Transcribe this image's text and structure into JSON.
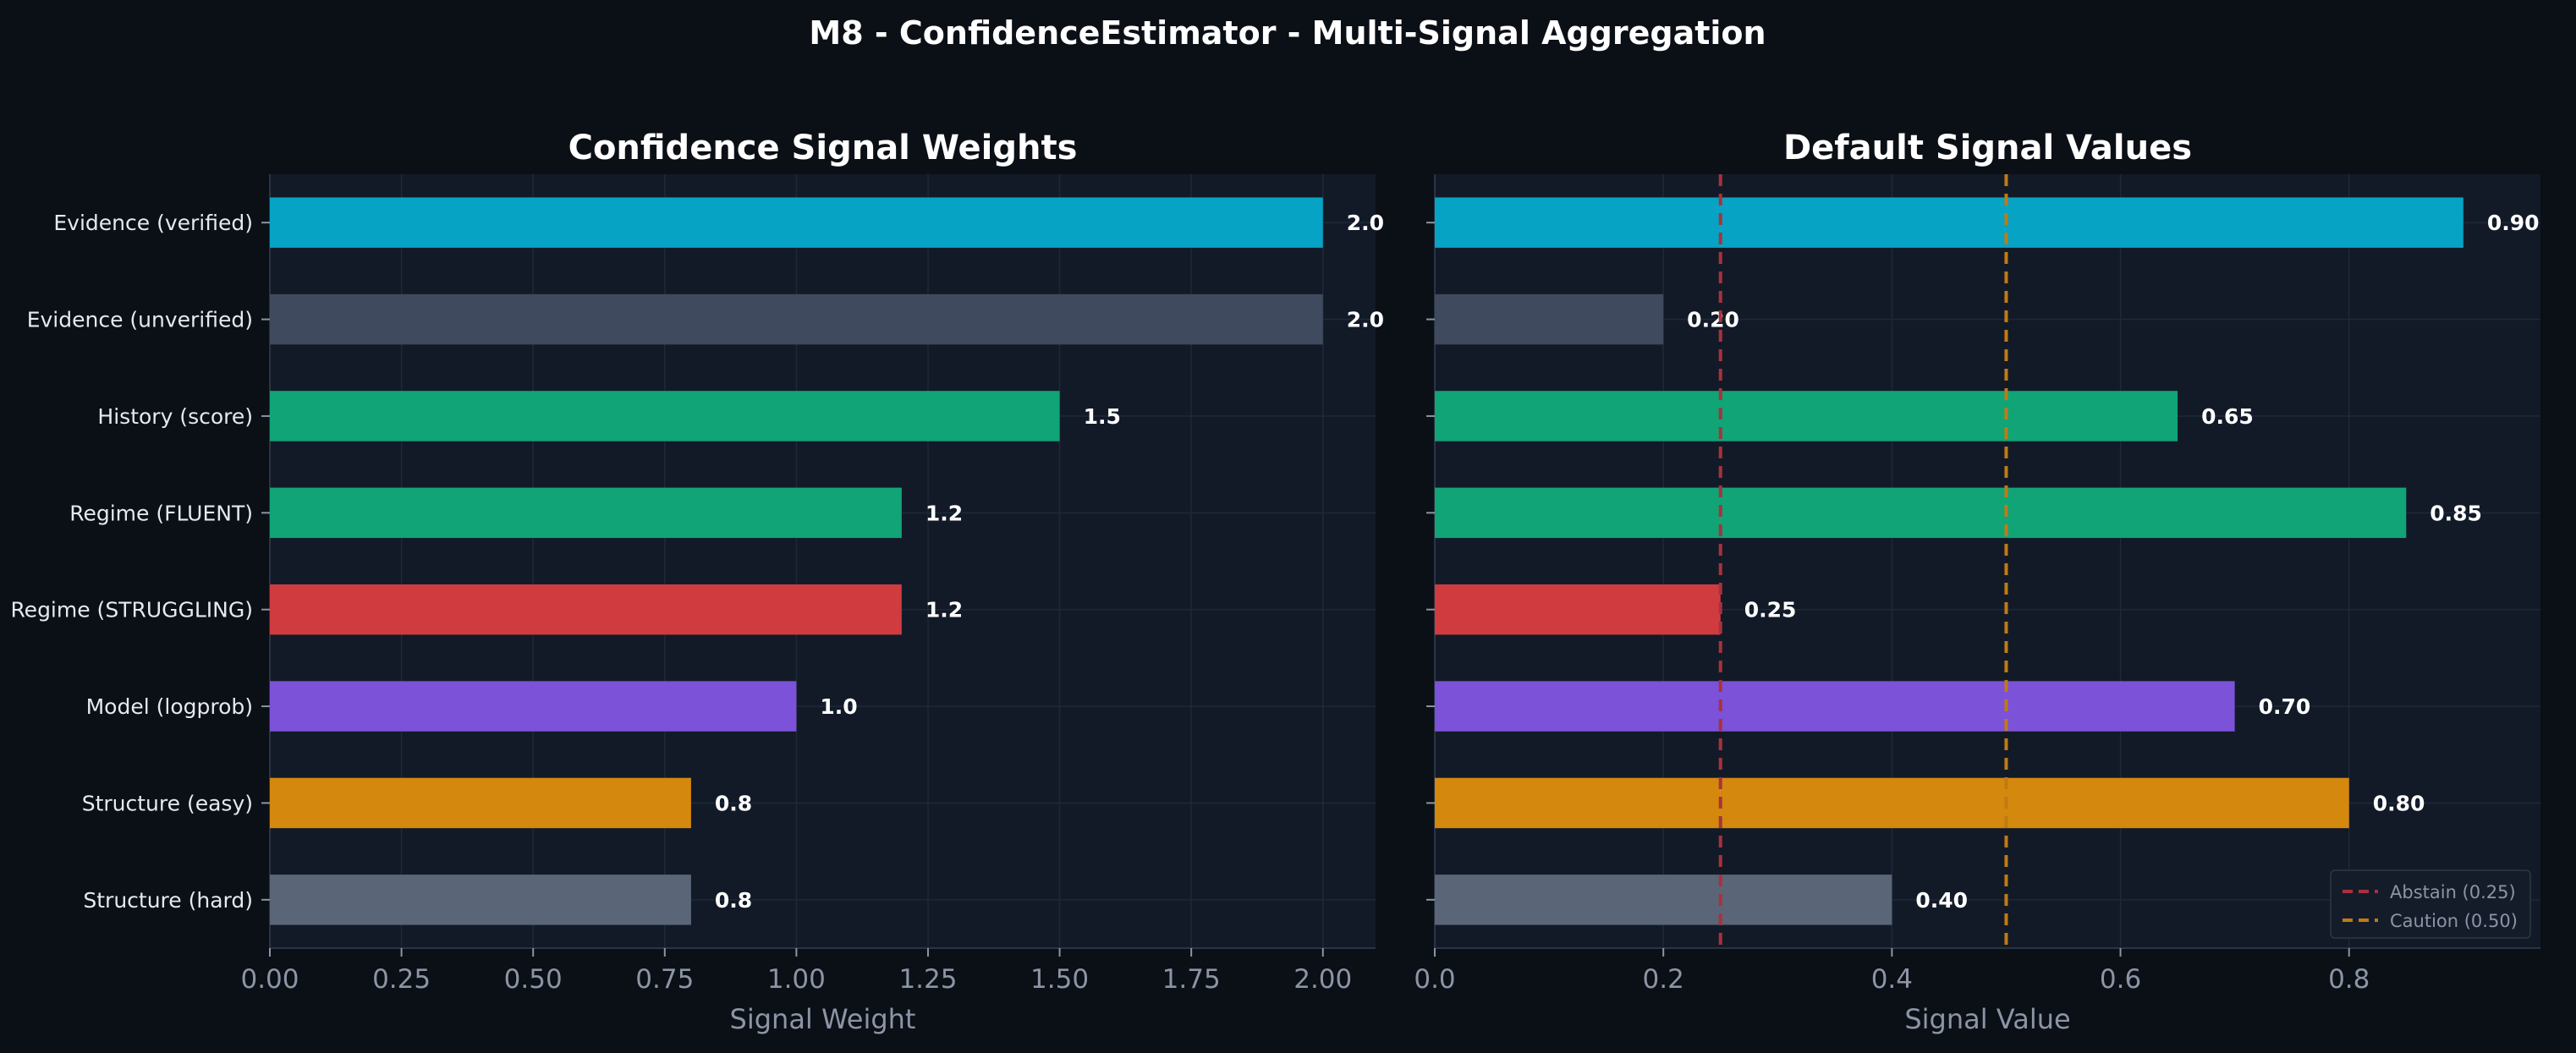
{
  "suptitle": "M8 - ConfidenceEstimator - Multi-Signal Aggregation",
  "colors": {
    "figure_bg": "#0b0f16",
    "axes_bg": "#121a28",
    "grid": "#1e2838",
    "spine": "#2a3445",
    "abstain_line": "#a8323c",
    "caution_line": "#c07a14"
  },
  "chart_data": [
    {
      "type": "bar",
      "orientation": "horizontal",
      "title": "Confidence Signal Weights",
      "xlabel": "Signal Weight",
      "ylabel": "",
      "xlim": [
        0,
        2.1
      ],
      "xticks": [
        0.0,
        0.25,
        0.5,
        0.75,
        1.0,
        1.25,
        1.5,
        1.75,
        2.0
      ],
      "xtick_labels": [
        "0.00",
        "0.25",
        "0.50",
        "0.75",
        "1.00",
        "1.25",
        "1.50",
        "1.75",
        "2.00"
      ],
      "grid": true,
      "categories": [
        "Evidence (verified)",
        "Evidence (unverified)",
        "History (score)",
        "Regime (FLUENT)",
        "Regime (STRUGGLING)",
        "Model (logprob)",
        "Structure (easy)",
        "Structure (hard)"
      ],
      "values": [
        2.0,
        2.0,
        1.5,
        1.2,
        1.2,
        1.0,
        0.8,
        0.8
      ],
      "value_labels": [
        "2.0",
        "2.0",
        "1.5",
        "1.2",
        "1.2",
        "1.0",
        "0.8",
        "0.8"
      ],
      "colors": [
        "#06a3c4",
        "#3f4a5e",
        "#11a477",
        "#11a477",
        "#d03b40",
        "#7b52d8",
        "#d4880e",
        "#5b6578"
      ]
    },
    {
      "type": "bar",
      "orientation": "horizontal",
      "title": "Default Signal Values",
      "xlabel": "Signal Value",
      "ylabel": "",
      "xlim": [
        0,
        0.9675
      ],
      "xticks": [
        0.0,
        0.2,
        0.4,
        0.6,
        0.8
      ],
      "xtick_labels": [
        "0.0",
        "0.2",
        "0.4",
        "0.6",
        "0.8"
      ],
      "grid": true,
      "categories": [
        "Evidence (verified)",
        "Evidence (unverified)",
        "History (score)",
        "Regime (FLUENT)",
        "Regime (STRUGGLING)",
        "Model (logprob)",
        "Structure (easy)",
        "Structure (hard)"
      ],
      "values": [
        0.9,
        0.2,
        0.65,
        0.85,
        0.25,
        0.7,
        0.8,
        0.4
      ],
      "value_labels": [
        "0.90",
        "0.20",
        "0.65",
        "0.85",
        "0.25",
        "0.70",
        "0.80",
        "0.40"
      ],
      "colors": [
        "#06a3c4",
        "#3f4a5e",
        "#11a477",
        "#11a477",
        "#d03b40",
        "#7b52d8",
        "#d4880e",
        "#5b6578"
      ],
      "reference_lines": [
        {
          "name": "Abstain (0.25)",
          "x": 0.25,
          "color": "#a8323c",
          "style": "dashed"
        },
        {
          "name": "Caution (0.50)",
          "x": 0.5,
          "color": "#c07a14",
          "style": "dashed"
        }
      ],
      "legend_position": "lower-right"
    }
  ]
}
